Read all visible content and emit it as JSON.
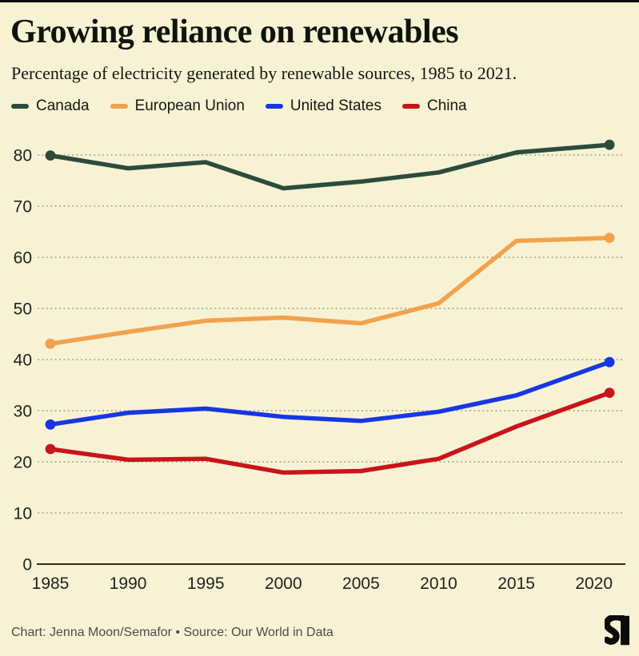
{
  "header": {
    "title": "Growing reliance on renewables",
    "subtitle": "Percentage of electricity generated by renewable sources, 1985 to 2021."
  },
  "chart_data": {
    "type": "line",
    "x": [
      1985,
      1990,
      1995,
      2000,
      2005,
      2010,
      2015,
      2021
    ],
    "series": [
      {
        "name": "Canada",
        "color": "#2b4c3a",
        "values": [
          79.9,
          77.4,
          78.6,
          73.5,
          74.8,
          76.6,
          80.5,
          82.0
        ]
      },
      {
        "name": "European Union",
        "color": "#f3a14d",
        "values": [
          43.1,
          45.4,
          47.6,
          48.2,
          47.1,
          51.0,
          63.2,
          63.8
        ]
      },
      {
        "name": "United States",
        "color": "#1736e3",
        "values": [
          27.3,
          29.6,
          30.4,
          28.8,
          28.0,
          29.8,
          33.0,
          39.5
        ]
      },
      {
        "name": "China",
        "color": "#c9141a",
        "values": [
          22.5,
          20.4,
          20.6,
          17.9,
          18.2,
          20.6,
          26.9,
          33.5
        ]
      }
    ],
    "x_ticks": [
      1985,
      1990,
      1995,
      2000,
      2005,
      2010,
      2015,
      2020
    ],
    "x_tick_labels": [
      "1985",
      "1990",
      "1995",
      "2000",
      "2005",
      "2010",
      "2015",
      "2020"
    ],
    "y_ticks": [
      0,
      10,
      20,
      30,
      40,
      50,
      60,
      70,
      80
    ],
    "ylim": [
      0,
      87
    ],
    "xlim": [
      1985,
      2021
    ],
    "grid": "horizontal dotted",
    "legend_position": "top",
    "endpoint_markers": "dots on first and last points",
    "title": "Growing reliance on renewables",
    "xlabel": "",
    "ylabel": ""
  },
  "footer": {
    "credit": "Chart: Jenna Moon/Semafor • Source: Our World in Data",
    "logo_icon": "semafor-logo"
  },
  "colors": {
    "background": "#f7f2d4",
    "top_border": "#0d0d0d",
    "gridline": "#a09f92",
    "axis_line": "#2c2c26",
    "tick_text": "#21241c",
    "credit_text": "#4c4c45",
    "logo": "#0b0b0b"
  }
}
